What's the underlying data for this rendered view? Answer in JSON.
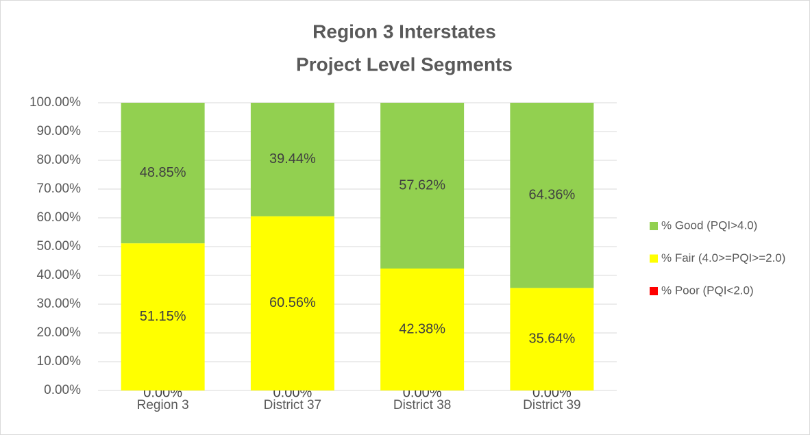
{
  "chart_data": {
    "type": "stacked-bar",
    "title": [
      "Region 3 Interstates",
      "Project Level Segments"
    ],
    "categories": [
      "Region 3",
      "District 37",
      "District 38",
      "District 39"
    ],
    "series": [
      {
        "name": "% Poor (PQI<2.0)",
        "color": "#ff0000",
        "values": [
          0,
          0,
          0,
          0
        ],
        "value_labels": [
          "0.00%",
          "0.00%",
          "0.00%",
          "0.00%"
        ]
      },
      {
        "name": "% Fair (4.0>=PQI>=2.0)",
        "color": "#ffff00",
        "values": [
          51.15,
          60.56,
          42.38,
          35.64
        ],
        "value_labels": [
          "51.15%",
          "60.56%",
          "42.38%",
          "35.64%"
        ]
      },
      {
        "name": "% Good (PQI>4.0)",
        "color": "#92d050",
        "values": [
          48.85,
          39.44,
          57.62,
          64.36
        ],
        "value_labels": [
          "48.85%",
          "39.44%",
          "57.62%",
          "64.36%"
        ]
      }
    ],
    "ylim": [
      0,
      100
    ],
    "yticks": [
      {
        "value": 0,
        "label": "0.00%"
      },
      {
        "value": 10,
        "label": "10.00%"
      },
      {
        "value": 20,
        "label": "20.00%"
      },
      {
        "value": 30,
        "label": "30.00%"
      },
      {
        "value": 40,
        "label": "40.00%"
      },
      {
        "value": 50,
        "label": "50.00%"
      },
      {
        "value": 60,
        "label": "60.00%"
      },
      {
        "value": 70,
        "label": "70.00%"
      },
      {
        "value": 80,
        "label": "80.00%"
      },
      {
        "value": 90,
        "label": "90.00%"
      },
      {
        "value": 100,
        "label": "100.00%"
      }
    ],
    "grid": true,
    "legend": "right"
  }
}
